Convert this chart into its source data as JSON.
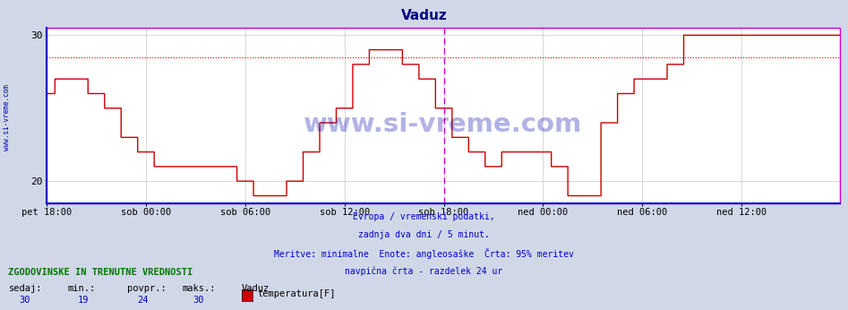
{
  "title": "Vaduz",
  "title_color": "#000080",
  "bg_color": "#d0d8e8",
  "plot_bg_color": "#ffffff",
  "grid_color": "#c8c8c8",
  "line_color": "#cc0000",
  "vline_color": "#cc00cc",
  "border_color": "#cc00cc",
  "axis_color": "#0000cc",
  "watermark": "www.si-vreme.com",
  "watermark_color": "#0000aa",
  "watermark_alpha": 0.3,
  "subtitle_lines": [
    "Evropa / vremenski podatki,",
    "zadnja dva dni / 5 minut.",
    "Meritve: minimalne  Enote: angleosaške  Črta: 95% meritev",
    "navpična črta - razdelek 24 ur"
  ],
  "subtitle_color": "#0000cc",
  "footer_header": "ZGODOVINSKE IN TRENUTNE VREDNOSTI",
  "footer_header_color": "#007700",
  "footer_labels": [
    "sedaj:",
    "min.:",
    "povpr.:",
    "maks.:"
  ],
  "footer_values": [
    "30",
    "19",
    "24",
    "30"
  ],
  "footer_station": "Vaduz",
  "footer_series": "temperatura[F]",
  "footer_series_color": "#cc0000",
  "ylim": [
    18.5,
    30.5
  ],
  "yticks": [
    20,
    30
  ],
  "xtick_labels": [
    "pet 18:00",
    "sob 00:00",
    "sob 06:00",
    "sob 12:00",
    "sob 18:00",
    "ned 00:00",
    "ned 06:00",
    "ned 12:00"
  ],
  "xtick_positions": [
    0,
    72,
    144,
    216,
    288,
    360,
    432,
    504
  ],
  "total_points": 576,
  "vline_pos": 288,
  "hline_y": 28.5,
  "temp_data": [
    26,
    26,
    26,
    26,
    26,
    26,
    27,
    27,
    27,
    27,
    27,
    27,
    27,
    27,
    27,
    27,
    27,
    27,
    27,
    27,
    27,
    27,
    27,
    27,
    27,
    27,
    27,
    27,
    27,
    27,
    26,
    26,
    26,
    26,
    26,
    26,
    26,
    26,
    26,
    26,
    26,
    26,
    25,
    25,
    25,
    25,
    25,
    25,
    25,
    25,
    25,
    25,
    25,
    25,
    23,
    23,
    23,
    23,
    23,
    23,
    23,
    23,
    23,
    23,
    23,
    23,
    22,
    22,
    22,
    22,
    22,
    22,
    22,
    22,
    22,
    22,
    22,
    22,
    21,
    21,
    21,
    21,
    21,
    21,
    21,
    21,
    21,
    21,
    21,
    21,
    21,
    21,
    21,
    21,
    21,
    21,
    21,
    21,
    21,
    21,
    21,
    21,
    21,
    21,
    21,
    21,
    21,
    21,
    21,
    21,
    21,
    21,
    21,
    21,
    21,
    21,
    21,
    21,
    21,
    21,
    21,
    21,
    21,
    21,
    21,
    21,
    21,
    21,
    21,
    21,
    21,
    21,
    21,
    21,
    21,
    21,
    21,
    21,
    20,
    20,
    20,
    20,
    20,
    20,
    20,
    20,
    20,
    20,
    20,
    20,
    19,
    19,
    19,
    19,
    19,
    19,
    19,
    19,
    19,
    19,
    19,
    19,
    19,
    19,
    19,
    19,
    19,
    19,
    19,
    19,
    19,
    19,
    19,
    19,
    20,
    20,
    20,
    20,
    20,
    20,
    20,
    20,
    20,
    20,
    20,
    20,
    22,
    22,
    22,
    22,
    22,
    22,
    22,
    22,
    22,
    22,
    22,
    22,
    24,
    24,
    24,
    24,
    24,
    24,
    24,
    24,
    24,
    24,
    24,
    24,
    25,
    25,
    25,
    25,
    25,
    25,
    25,
    25,
    25,
    25,
    25,
    25,
    28,
    28,
    28,
    28,
    28,
    28,
    28,
    28,
    28,
    28,
    28,
    28,
    29,
    29,
    29,
    29,
    29,
    29,
    29,
    29,
    29,
    29,
    29,
    29,
    29,
    29,
    29,
    29,
    29,
    29,
    29,
    29,
    29,
    29,
    29,
    29,
    28,
    28,
    28,
    28,
    28,
    28,
    28,
    28,
    28,
    28,
    28,
    28,
    27,
    27,
    27,
    27,
    27,
    27,
    27,
    27,
    27,
    27,
    27,
    27,
    25,
    25,
    25,
    25,
    25,
    25,
    25,
    25,
    25,
    25,
    25,
    25,
    23,
    23,
    23,
    23,
    23,
    23,
    23,
    23,
    23,
    23,
    23,
    23,
    22,
    22,
    22,
    22,
    22,
    22,
    22,
    22,
    22,
    22,
    22,
    22,
    21,
    21,
    21,
    21,
    21,
    21,
    21,
    21,
    21,
    21,
    21,
    21,
    22,
    22,
    22,
    22,
    22,
    22,
    22,
    22,
    22,
    22,
    22,
    22,
    22,
    22,
    22,
    22,
    22,
    22,
    22,
    22,
    22,
    22,
    22,
    22,
    22,
    22,
    22,
    22,
    22,
    22,
    22,
    22,
    22,
    22,
    22,
    22,
    21,
    21,
    21,
    21,
    21,
    21,
    21,
    21,
    21,
    21,
    21,
    21,
    19,
    19,
    19,
    19,
    19,
    19,
    19,
    19,
    19,
    19,
    19,
    19,
    19,
    19,
    19,
    19,
    19,
    19,
    19,
    19,
    19,
    19,
    19,
    19,
    24,
    24,
    24,
    24,
    24,
    24,
    24,
    24,
    24,
    24,
    24,
    24,
    26,
    26,
    26,
    26,
    26,
    26,
    26,
    26,
    26,
    26,
    26,
    26,
    27,
    27,
    27,
    27,
    27,
    27,
    27,
    27,
    27,
    27,
    27,
    27,
    27,
    27,
    27,
    27,
    27,
    27,
    27,
    27,
    27,
    27,
    27,
    27,
    28,
    28,
    28,
    28,
    28,
    28,
    28,
    28,
    28,
    28,
    28,
    28,
    30,
    30,
    30,
    30,
    30,
    30,
    30,
    30,
    30,
    30,
    30,
    30,
    30,
    30,
    30,
    30,
    30,
    30,
    30,
    30,
    30,
    30,
    30,
    30,
    30,
    30,
    30,
    30,
    30,
    30,
    30,
    30,
    30,
    30,
    30,
    30,
    30,
    30,
    30,
    30,
    30,
    30,
    30,
    30,
    30,
    30,
    30,
    30,
    30,
    30,
    30,
    30,
    30,
    30,
    30,
    30,
    30,
    30,
    30,
    30,
    30,
    30,
    30,
    30,
    30,
    30,
    30,
    30,
    30,
    30,
    30,
    30,
    30,
    30,
    30,
    30,
    30,
    30,
    30,
    30,
    30,
    30,
    30,
    30,
    30,
    30,
    30,
    30,
    30,
    30,
    30,
    30,
    30,
    30,
    30,
    30,
    30,
    30,
    30,
    30,
    30,
    30,
    30,
    30,
    30,
    30,
    30,
    30
  ]
}
